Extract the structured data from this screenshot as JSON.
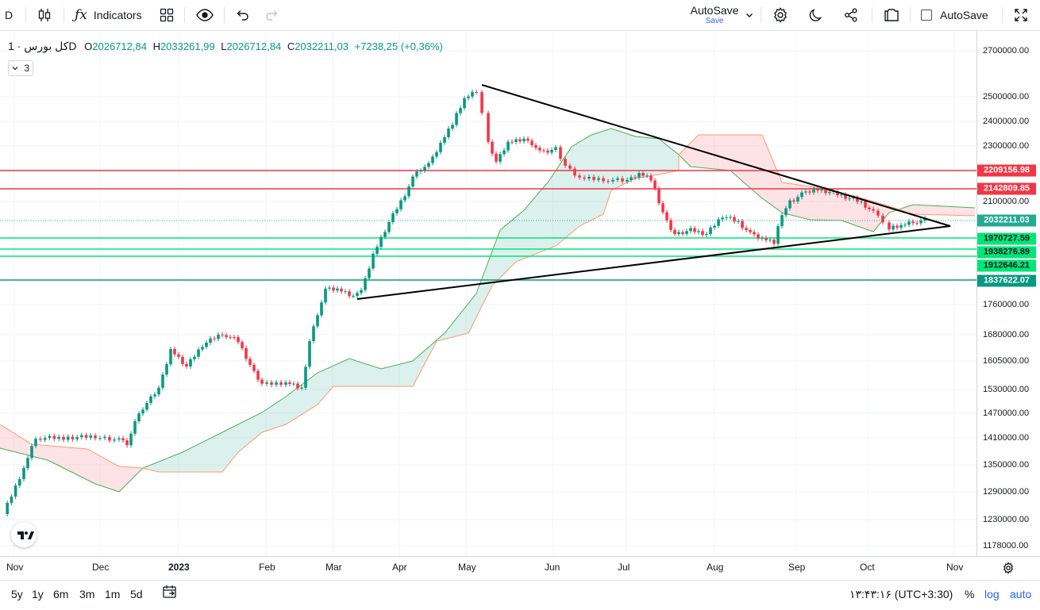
{
  "toolbar": {
    "symbol_short": "D",
    "indicators_label": "Indicators",
    "autosave_title": "AutoSave",
    "autosave_sub": "Save",
    "autosave_checkbox_label": "AutoSave"
  },
  "legend": {
    "symbol": "کل بورس · 1D",
    "o_label": "O",
    "o": "2026712,84",
    "h_label": "H",
    "h": "2033261,99",
    "l_label": "L",
    "l": "2026712,84",
    "c_label": "C",
    "c": "2032211,03",
    "change": "+7238,25 (+0,36%)",
    "collapsed_count": "3"
  },
  "price_axis": [
    "2700000.00",
    "2500000.00",
    "2400000.00",
    "2300000.00",
    "2100000.00",
    "1760000.00",
    "1680000.00",
    "1605000.00",
    "1530000.00",
    "1470000.00",
    "1410000.00",
    "1350000.00",
    "1290000.00",
    "1230000.00",
    "1178000.00"
  ],
  "price_badges": [
    {
      "value": "2209156.98",
      "color": "#f23645"
    },
    {
      "value": "2142809.85",
      "color": "#f23645"
    },
    {
      "value": "2032211.03",
      "color": "#22ab94"
    },
    {
      "value": "1970727.59",
      "color": "#00e676"
    },
    {
      "value": "1938276.89",
      "color": "#00e676"
    },
    {
      "value": "1912646.21",
      "color": "#00e676"
    },
    {
      "value": "1837622.07",
      "color": "#089981"
    }
  ],
  "time_axis": [
    "Nov",
    "Dec",
    "2023",
    "Feb",
    "Mar",
    "Apr",
    "May",
    "Jun",
    "Jul",
    "Aug",
    "Sep",
    "Oct",
    "Nov"
  ],
  "bottom": {
    "ranges": [
      "5y",
      "1y",
      "6m",
      "3m",
      "1m",
      "5d"
    ],
    "clock": "۱۳:۴۳:۱۶ (UTC+3:30)",
    "percent": "%",
    "log": "log",
    "auto": "auto"
  },
  "colors": {
    "up": "#089981",
    "down": "#f23645"
  }
}
